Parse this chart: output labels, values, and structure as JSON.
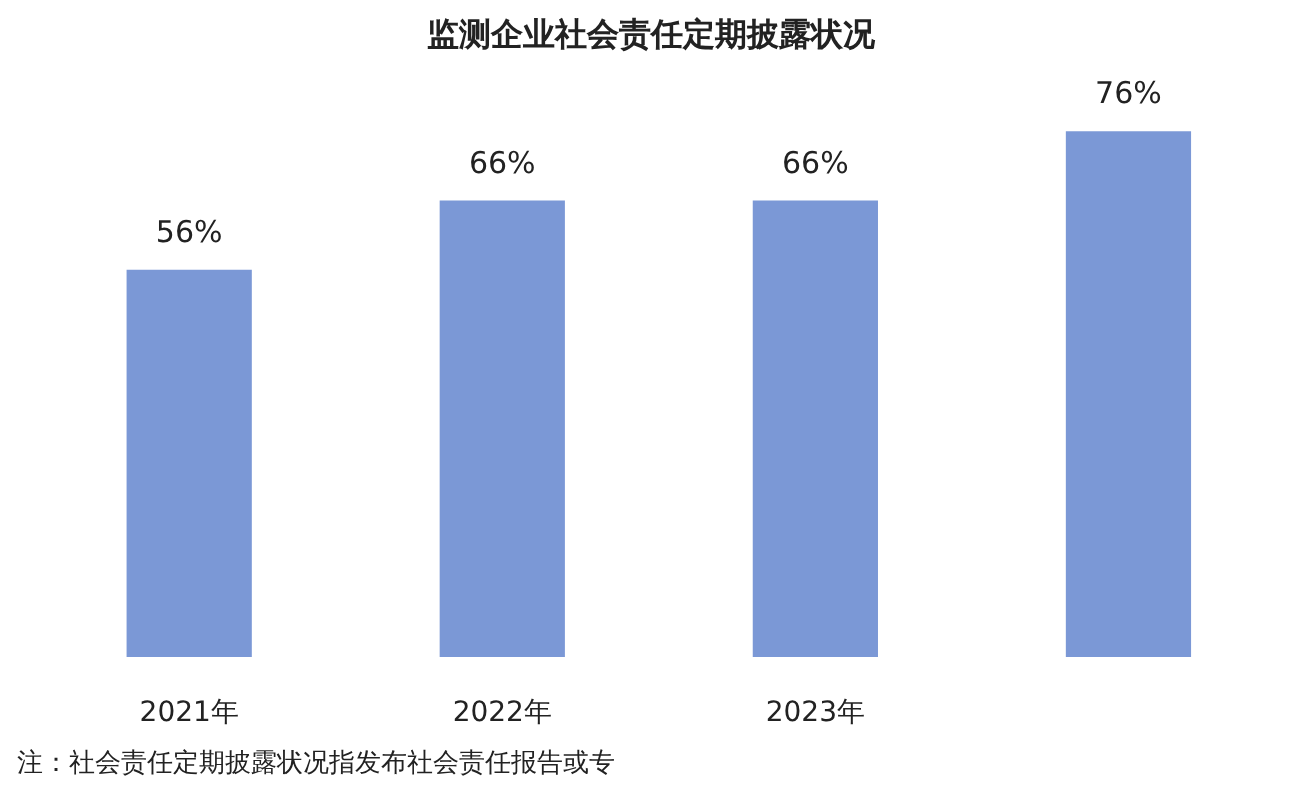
{
  "chart_data": {
    "type": "bar",
    "title": "监测企业社会责任定期披露状况",
    "categories": [
      "2021年",
      "2022年",
      "2023年",
      null
    ],
    "values": [
      56,
      66,
      66,
      76
    ],
    "value_labels": [
      "56%",
      "66%",
      "66%",
      "76%"
    ],
    "color": "#7b98d6",
    "annotations": [
      "注：社会责任定期披露状况指发布社会责任报告或专"
    ]
  }
}
